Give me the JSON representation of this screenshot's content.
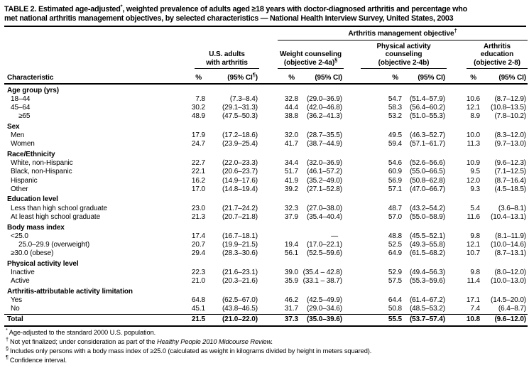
{
  "title": {
    "line1_pre": "TABLE 2. Estimated age-adjusted",
    "line1_sup": "*",
    "line1_post": ", weighted prevalence of adults aged ≥18 years with doctor-diagnosed arthritis and percentage who",
    "line2": "met national arthritis management objectives, by selected characteristics — National Health Interview Survey, United States, 2003"
  },
  "header": {
    "spanner": {
      "text": "Arthritis management objective",
      "sup": "†"
    },
    "characteristic_label": "Characteristic",
    "groups": [
      {
        "line1": "U.S. adults",
        "line2": "with arthritis",
        "line3": "",
        "sup": "",
        "pct": "%",
        "ci_pre": "(95% CI",
        "ci_sup": "¶",
        "ci_post": ")"
      },
      {
        "line1": "Weight counseling",
        "line2": "(objective 2-4a)",
        "line3": "",
        "sup": "§",
        "pct": "%",
        "ci_pre": "(95% CI",
        "ci_sup": "",
        "ci_post": ")"
      },
      {
        "line1": "Physical activity",
        "line2": "counseling",
        "line3": "(objective 2-4b)",
        "sup": "",
        "pct": "%",
        "ci_pre": "(95% CI",
        "ci_sup": "",
        "ci_post": ")"
      },
      {
        "line1": "Arthritis",
        "line2": "education",
        "line3": "(objective 2-8)",
        "sup": "",
        "pct": "%",
        "ci_pre": "(95% CI",
        "ci_sup": "",
        "ci_post": ")"
      }
    ]
  },
  "table": {
    "rows": [
      {
        "type": "section",
        "label": "Age group (yrs)"
      },
      {
        "type": "data",
        "label": "18–44",
        "indent": 1,
        "cells": [
          "7.8",
          "(7.3–8.4)",
          "32.8",
          "(29.0–36.9)",
          "54.7",
          "(51.4–57.9)",
          "10.6",
          "(8.7–12.9)"
        ]
      },
      {
        "type": "data",
        "label": "45–64",
        "indent": 1,
        "cells": [
          "30.2",
          "(29.1–31.3)",
          "44.4",
          "(42.0–46.8)",
          "58.3",
          "(56.4–60.2)",
          "12.1",
          "(10.8–13.5)"
        ]
      },
      {
        "type": "data",
        "label": "≥65",
        "indent": 2,
        "cells": [
          "48.9",
          "(47.5–50.3)",
          "38.8",
          "(36.2–41.3)",
          "53.2",
          "(51.0–55.3)",
          "8.9",
          "(7.8–10.2)"
        ]
      },
      {
        "type": "section",
        "label": "Sex"
      },
      {
        "type": "data",
        "label": "Men",
        "indent": 1,
        "cells": [
          "17.9",
          "(17.2–18.6)",
          "32.0",
          "(28.7–35.5)",
          "49.5",
          "(46.3–52.7)",
          "10.0",
          "(8.3–12.0)"
        ]
      },
      {
        "type": "data",
        "label": "Women",
        "indent": 1,
        "cells": [
          "24.7",
          "(23.9–25.4)",
          "41.7",
          "(38.7–44.9)",
          "59.4",
          "(57.1–61.7)",
          "11.3",
          "(9.7–13.0)"
        ]
      },
      {
        "type": "section",
        "label": "Race/Ethnicity"
      },
      {
        "type": "data",
        "label": "White, non-Hispanic",
        "indent": 1,
        "cells": [
          "22.7",
          "(22.0–23.3)",
          "34.4",
          "(32.0–36.9)",
          "54.6",
          "(52.6–56.6)",
          "10.9",
          "(9.6–12.3)"
        ]
      },
      {
        "type": "data",
        "label": "Black, non-Hispanic",
        "indent": 1,
        "cells": [
          "22.1",
          "(20.6–23.7)",
          "51.7",
          "(46.1–57.2)",
          "60.9",
          "(55.0–66.5)",
          "9.5",
          "(7.1–12.5)"
        ]
      },
      {
        "type": "data",
        "label": "Hispanic",
        "indent": 1,
        "cells": [
          "16.2",
          "(14.9–17.6)",
          "41.9",
          "(35.2–49.0)",
          "56.9",
          "(50.8–62.8)",
          "12.0",
          "(8.7–16.4)"
        ]
      },
      {
        "type": "data",
        "label": "Other",
        "indent": 1,
        "cells": [
          "17.0",
          "(14.8–19.4)",
          "39.2",
          "(27.1–52.8)",
          "57.1",
          "(47.0–66.7)",
          "9.3",
          "(4.5–18.5)"
        ]
      },
      {
        "type": "section",
        "label": "Education level"
      },
      {
        "type": "data",
        "label": "Less than high school graduate",
        "indent": 1,
        "cells": [
          "23.0",
          "(21.7–24.2)",
          "32.3",
          "(27.0–38.0)",
          "48.7",
          "(43.2–54.2)",
          "5.4",
          "(3.6–8.1)"
        ]
      },
      {
        "type": "data",
        "label": "At least high school graduate",
        "indent": 1,
        "cells": [
          "21.3",
          "(20.7–21.8)",
          "37.9",
          "(35.4–40.4)",
          "57.0",
          "(55.0–58.9)",
          "11.6",
          "(10.4–13.1)"
        ]
      },
      {
        "type": "section",
        "label": "Body mass index"
      },
      {
        "type": "data",
        "label": "<25.0",
        "indent": 1,
        "cells": [
          "17.4",
          "(16.7–18.1)",
          "",
          "—",
          "48.8",
          "(45.5–52.1)",
          "9.8",
          "(8.1–11.9)"
        ]
      },
      {
        "type": "data",
        "label": "25.0–29.9 (overweight)",
        "indent": 2,
        "cells": [
          "20.7",
          "(19.9–21.5)",
          "19.4",
          "(17.0–22.1)",
          "52.5",
          "(49.3–55.8)",
          "12.1",
          "(10.0–14.6)"
        ]
      },
      {
        "type": "data",
        "label": "≥30.0 (obese)",
        "indent": 1,
        "cells": [
          "29.4",
          "(28.3–30.6)",
          "56.1",
          "(52.5–59.6)",
          "64.9",
          "(61.5–68.2)",
          "10.7",
          "(8.7–13.1)"
        ]
      },
      {
        "type": "section",
        "label": "Physical activity level"
      },
      {
        "type": "data",
        "label": "Inactive",
        "indent": 1,
        "cells": [
          "22.3",
          "(21.6–23.1)",
          "39.0",
          "(35.4 – 42.8)",
          "52.9",
          "(49.4–56.3)",
          "9.8",
          "(8.0–12.0)"
        ]
      },
      {
        "type": "data",
        "label": "Active",
        "indent": 1,
        "cells": [
          "21.0",
          "(20.3–21.6)",
          "35.9",
          "(33.1 – 38.7)",
          "57.5",
          "(55.3–59.6)",
          "11.4",
          "(10.0–13.0)"
        ]
      },
      {
        "type": "section",
        "label": "Arthritis-attributable activity limitation"
      },
      {
        "type": "data",
        "label": "Yes",
        "indent": 1,
        "cells": [
          "64.8",
          "(62.5–67.0)",
          "46.2",
          "(42.5–49.9)",
          "64.4",
          "(61.4–67.2)",
          "17.1",
          "(14.5–20.0)"
        ]
      },
      {
        "type": "data",
        "label": "No",
        "indent": 1,
        "cells": [
          "45.1",
          "(43.8–46.5)",
          "31.7",
          "(29.0–34.6)",
          "50.8",
          "(48.5–53.2)",
          "7.4",
          "(6.4–8.7)"
        ]
      },
      {
        "type": "total",
        "label": "Total",
        "indent": 0,
        "cells": [
          "21.5",
          "(21.0–22.0)",
          "37.3",
          "(35.0–39.6)",
          "55.5",
          "(53.7–57.4)",
          "10.8",
          "(9.6–12.0)"
        ]
      }
    ]
  },
  "footnotes": [
    {
      "marker": "*",
      "text": "Age-adjusted to the standard 2000 U.S. population.",
      "italic": ""
    },
    {
      "marker": "†",
      "text": "Not yet finalized; under consideration as part of the ",
      "italic": "Healthy People 2010 Midcourse Review."
    },
    {
      "marker": "§",
      "text": "Includes only persons with a body mass index of ≥25.0 (calculated as weight in kilograms divided by height in meters squared).",
      "italic": ""
    },
    {
      "marker": "¶",
      "text": "Confidence interval.",
      "italic": ""
    }
  ]
}
